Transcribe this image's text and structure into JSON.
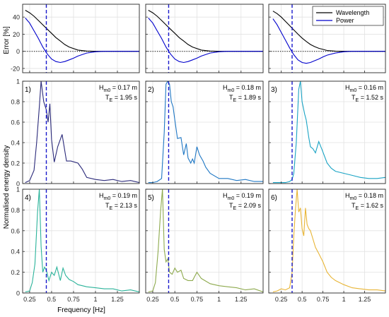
{
  "figure": {
    "ylabel_top": "Error [%]",
    "ylabel_bottom": "Normalised energy density",
    "xlabel": "Frequency [Hz]"
  },
  "chart_data": [
    {
      "type": "line",
      "panel": "error-col1",
      "xlim": [
        0.17,
        1.5
      ],
      "ylim": [
        -25,
        55
      ],
      "yticks": [
        -20,
        0,
        20,
        40
      ],
      "xticks": [
        0.25,
        0.5,
        0.75,
        1,
        1.25
      ],
      "xticklabels": [],
      "grid": true,
      "vline": 0.44,
      "series": [
        {
          "name": "Wavelength",
          "color": "#000000",
          "x": [
            0.2,
            0.25,
            0.3,
            0.35,
            0.4,
            0.45,
            0.5,
            0.55,
            0.6,
            0.65,
            0.7,
            0.8,
            0.9,
            1.0,
            1.1,
            1.25,
            1.5
          ],
          "y": [
            48,
            45,
            41,
            36,
            31,
            26,
            21,
            16,
            12,
            8,
            5,
            1.5,
            0.3,
            0,
            0,
            0,
            0
          ]
        },
        {
          "name": "Power",
          "color": "#0000cc",
          "x": [
            0.2,
            0.25,
            0.3,
            0.35,
            0.4,
            0.45,
            0.5,
            0.55,
            0.6,
            0.65,
            0.7,
            0.75,
            0.8,
            0.9,
            1.0,
            1.1,
            1.25,
            1.5
          ],
          "y": [
            39,
            33,
            24,
            15,
            5,
            -3,
            -9,
            -12,
            -13,
            -12,
            -10,
            -8,
            -5.5,
            -2,
            -0.5,
            0,
            0,
            0
          ]
        }
      ]
    },
    {
      "type": "line",
      "panel": "error-col2",
      "xlim": [
        0.17,
        1.5
      ],
      "ylim": [
        -25,
        55
      ],
      "yticks": [
        -20,
        0,
        20,
        40
      ],
      "xticks": [
        0.25,
        0.5,
        0.75,
        1,
        1.25
      ],
      "xticklabels": [],
      "grid": true,
      "vline": 0.43,
      "series": [
        {
          "name": "Wavelength",
          "color": "#000000",
          "x": [
            0.2,
            0.25,
            0.3,
            0.35,
            0.4,
            0.45,
            0.5,
            0.55,
            0.6,
            0.65,
            0.7,
            0.8,
            0.9,
            1.0,
            1.1,
            1.25,
            1.5
          ],
          "y": [
            48,
            45,
            41,
            36,
            31,
            26,
            21,
            16,
            12,
            8,
            5,
            1.5,
            0.3,
            0,
            0,
            0,
            0
          ]
        },
        {
          "name": "Power",
          "color": "#0000cc",
          "x": [
            0.2,
            0.25,
            0.3,
            0.35,
            0.4,
            0.45,
            0.5,
            0.55,
            0.6,
            0.65,
            0.7,
            0.75,
            0.8,
            0.9,
            1.0,
            1.1,
            1.25,
            1.5
          ],
          "y": [
            39,
            33,
            24,
            15,
            5,
            -3,
            -9,
            -12,
            -13,
            -12,
            -10,
            -8,
            -5.5,
            -2,
            -0.5,
            0,
            0,
            0
          ]
        }
      ]
    },
    {
      "type": "line",
      "panel": "error-col3",
      "xlim": [
        0.1,
        1.5
      ],
      "ylim": [
        -25,
        55
      ],
      "yticks": [
        -20,
        0,
        20,
        40
      ],
      "xticks": [
        0.25,
        0.5,
        0.75,
        1,
        1.25
      ],
      "xticklabels": [],
      "grid": true,
      "vline": 0.38,
      "legend": "top-right",
      "series": [
        {
          "name": "Wavelength",
          "color": "#000000",
          "x": [
            0.15,
            0.2,
            0.25,
            0.3,
            0.35,
            0.4,
            0.45,
            0.5,
            0.55,
            0.6,
            0.65,
            0.7,
            0.8,
            0.9,
            1.0,
            1.1,
            1.25,
            1.5
          ],
          "y": [
            47,
            44,
            40,
            35,
            30,
            25,
            20,
            15.5,
            11.5,
            8,
            5.5,
            3.5,
            1,
            0.2,
            0,
            0,
            0,
            0
          ]
        },
        {
          "name": "Power",
          "color": "#0000cc",
          "x": [
            0.15,
            0.2,
            0.25,
            0.3,
            0.35,
            0.4,
            0.45,
            0.5,
            0.55,
            0.6,
            0.65,
            0.7,
            0.75,
            0.8,
            0.9,
            1.0,
            1.1,
            1.25,
            1.5
          ],
          "y": [
            38,
            31,
            22,
            13,
            4,
            -4,
            -10,
            -13,
            -14,
            -13,
            -11,
            -9,
            -6.5,
            -4.5,
            -2,
            -0.5,
            0,
            0,
            0
          ]
        }
      ]
    },
    {
      "type": "line",
      "panel": "spectrum-1",
      "label": "1)",
      "hm0": "H",
      "hm0_sub": "m0",
      "hm0_val": " = 0.17 m",
      "te": "T",
      "te_sub": "E",
      "te_val": " = 1.95 s",
      "xlim": [
        0.17,
        1.5
      ],
      "ylim": [
        0,
        1
      ],
      "yticks": [
        0,
        0.2,
        0.4,
        0.6,
        0.8,
        1
      ],
      "yticklabels": [
        "0",
        "0.2",
        "0.4",
        "0.6",
        "0.8",
        "1"
      ],
      "xticks": [
        0.25,
        0.5,
        0.75,
        1,
        1.25
      ],
      "xticklabels": [],
      "grid": true,
      "vline": 0.44,
      "series": [
        {
          "color": "#2b2a7a",
          "x": [
            0.2,
            0.25,
            0.3,
            0.33,
            0.36,
            0.38,
            0.41,
            0.44,
            0.46,
            0.48,
            0.5,
            0.53,
            0.57,
            0.62,
            0.67,
            0.72,
            0.8,
            0.85,
            0.9,
            1.0,
            1.1,
            1.2,
            1.3,
            1.4,
            1.5
          ],
          "y": [
            0.01,
            0.03,
            0.13,
            0.4,
            0.75,
            1.0,
            0.8,
            0.72,
            0.6,
            0.78,
            0.43,
            0.21,
            0.36,
            0.48,
            0.22,
            0.22,
            0.2,
            0.14,
            0.06,
            0.04,
            0.03,
            0.04,
            0.02,
            0.03,
            0.01
          ]
        }
      ]
    },
    {
      "type": "line",
      "panel": "spectrum-2",
      "label": "2)",
      "hm0": "H",
      "hm0_sub": "m0",
      "hm0_val": " = 0.18 m",
      "te": "T",
      "te_sub": "E",
      "te_val": " = 1.89 s",
      "xlim": [
        0.17,
        1.5
      ],
      "ylim": [
        0,
        1
      ],
      "yticks": [
        0,
        0.2,
        0.4,
        0.6,
        0.8,
        1
      ],
      "xticks": [
        0.25,
        0.5,
        0.75,
        1,
        1.25
      ],
      "xticklabels": [],
      "grid": true,
      "vline": 0.43,
      "series": [
        {
          "color": "#1f77c4",
          "x": [
            0.2,
            0.25,
            0.3,
            0.35,
            0.38,
            0.4,
            0.42,
            0.44,
            0.46,
            0.48,
            0.5,
            0.53,
            0.57,
            0.6,
            0.63,
            0.65,
            0.68,
            0.7,
            0.72,
            0.75,
            0.78,
            0.82,
            0.85,
            0.9,
            1.0,
            1.1,
            1.2,
            1.3,
            1.4,
            1.5
          ],
          "y": [
            0.01,
            0.01,
            0.02,
            0.05,
            0.5,
            0.97,
            1.0,
            0.97,
            0.8,
            0.75,
            0.62,
            0.44,
            0.45,
            0.28,
            0.39,
            0.25,
            0.2,
            0.24,
            0.2,
            0.36,
            0.28,
            0.22,
            0.16,
            0.1,
            0.05,
            0.05,
            0.03,
            0.04,
            0.02,
            0.02
          ]
        }
      ]
    },
    {
      "type": "line",
      "panel": "spectrum-3",
      "label": "3)",
      "hm0": "H",
      "hm0_sub": "m0",
      "hm0_val": " = 0.16 m",
      "te": "T",
      "te_sub": "E",
      "te_val": " = 1.52 s",
      "xlim": [
        0.1,
        1.5
      ],
      "ylim": [
        0,
        1
      ],
      "yticks": [
        0,
        0.2,
        0.4,
        0.6,
        0.8,
        1
      ],
      "xticks": [
        0.25,
        0.5,
        0.75,
        1,
        1.25
      ],
      "xticklabels": [],
      "grid": true,
      "vline": 0.38,
      "series": [
        {
          "color": "#19a3c4",
          "x": [
            0.15,
            0.2,
            0.25,
            0.3,
            0.35,
            0.38,
            0.4,
            0.43,
            0.46,
            0.48,
            0.5,
            0.53,
            0.55,
            0.58,
            0.6,
            0.63,
            0.66,
            0.7,
            0.74,
            0.8,
            0.85,
            0.9,
            1.0,
            1.1,
            1.2,
            1.3,
            1.4,
            1.5
          ],
          "y": [
            0.01,
            0.01,
            0.01,
            0.01,
            0.02,
            0.04,
            0.1,
            0.4,
            0.92,
            1.0,
            0.8,
            0.68,
            0.62,
            0.45,
            0.36,
            0.34,
            0.3,
            0.41,
            0.33,
            0.2,
            0.15,
            0.12,
            0.1,
            0.08,
            0.06,
            0.05,
            0.05,
            0.06
          ]
        }
      ]
    },
    {
      "type": "line",
      "panel": "spectrum-4",
      "label": "4)",
      "hm0": "H",
      "hm0_sub": "m0",
      "hm0_val": " = 0.19 m",
      "te": "T",
      "te_sub": "E",
      "te_val": " = 2.13 s",
      "xlim": [
        0.17,
        1.5
      ],
      "ylim": [
        0,
        1
      ],
      "yticks": [
        0,
        0.2,
        0.4,
        0.6,
        0.8,
        1
      ],
      "yticklabels": [
        "0",
        "0.2",
        "0.4",
        "0.6",
        "0.8",
        "1"
      ],
      "xticks": [
        0.25,
        0.5,
        0.75,
        1,
        1.25
      ],
      "xticklabels": [
        "0.25",
        "0.5",
        "0.75",
        "1",
        "1.25"
      ],
      "grid": true,
      "vline": 0.44,
      "series": [
        {
          "color": "#2bb39a",
          "x": [
            0.2,
            0.25,
            0.28,
            0.31,
            0.34,
            0.36,
            0.38,
            0.4,
            0.42,
            0.44,
            0.47,
            0.5,
            0.53,
            0.56,
            0.6,
            0.63,
            0.66,
            0.7,
            0.75,
            0.8,
            0.9,
            1.0,
            1.1,
            1.2,
            1.3,
            1.4,
            1.5
          ],
          "y": [
            0.01,
            0.02,
            0.1,
            0.28,
            0.78,
            1.0,
            0.45,
            0.2,
            0.25,
            0.22,
            0.12,
            0.2,
            0.17,
            0.25,
            0.12,
            0.24,
            0.17,
            0.13,
            0.11,
            0.08,
            0.06,
            0.05,
            0.04,
            0.04,
            0.02,
            0.03,
            0.01
          ]
        }
      ]
    },
    {
      "type": "line",
      "panel": "spectrum-5",
      "label": "5)",
      "hm0": "H",
      "hm0_sub": "m0",
      "hm0_val": " = 0.19 m",
      "te": "T",
      "te_sub": "E",
      "te_val": " = 2.09 s",
      "xlim": [
        0.17,
        1.5
      ],
      "ylim": [
        0,
        1
      ],
      "yticks": [
        0,
        0.2,
        0.4,
        0.6,
        0.8,
        1
      ],
      "xticks": [
        0.25,
        0.5,
        0.75,
        1,
        1.25
      ],
      "xticklabels": [
        "0.25",
        "0.5",
        "0.75",
        "1",
        "1.25"
      ],
      "grid": true,
      "vline": 0.43,
      "series": [
        {
          "color": "#8eaa4e",
          "x": [
            0.2,
            0.25,
            0.28,
            0.31,
            0.34,
            0.36,
            0.38,
            0.4,
            0.42,
            0.44,
            0.47,
            0.5,
            0.53,
            0.57,
            0.6,
            0.65,
            0.7,
            0.75,
            0.8,
            0.9,
            1.0,
            1.1,
            1.2,
            1.3,
            1.4,
            1.5
          ],
          "y": [
            0.01,
            0.02,
            0.1,
            0.4,
            0.8,
            1.0,
            0.42,
            0.3,
            0.33,
            0.2,
            0.18,
            0.24,
            0.2,
            0.22,
            0.14,
            0.12,
            0.12,
            0.2,
            0.14,
            0.09,
            0.07,
            0.06,
            0.05,
            0.03,
            0.04,
            0.01
          ]
        }
      ]
    },
    {
      "type": "line",
      "panel": "spectrum-6",
      "label": "6)",
      "hm0": "H",
      "hm0_sub": "m0",
      "hm0_val": " = 0.18 m",
      "te": "T",
      "te_sub": "E",
      "te_val": " = 1.62 s",
      "xlim": [
        0.1,
        1.5
      ],
      "ylim": [
        0,
        1
      ],
      "yticks": [
        0,
        0.2,
        0.4,
        0.6,
        0.8,
        1
      ],
      "xticks": [
        0.25,
        0.5,
        0.75,
        1,
        1.25
      ],
      "xticklabels": [
        "0.25",
        "0.5",
        "0.75",
        "1",
        "1.25"
      ],
      "grid": true,
      "vline": 0.38,
      "series": [
        {
          "color": "#e8b536",
          "x": [
            0.15,
            0.2,
            0.25,
            0.3,
            0.35,
            0.38,
            0.4,
            0.42,
            0.44,
            0.46,
            0.48,
            0.5,
            0.52,
            0.54,
            0.56,
            0.58,
            0.6,
            0.63,
            0.66,
            0.7,
            0.75,
            0.8,
            0.85,
            0.9,
            1.0,
            1.1,
            1.2,
            1.3,
            1.4,
            1.5
          ],
          "y": [
            0.01,
            0.02,
            0.04,
            0.03,
            0.05,
            0.2,
            0.55,
            0.8,
            1.0,
            0.78,
            0.82,
            0.62,
            0.55,
            0.82,
            0.66,
            0.62,
            0.6,
            0.52,
            0.44,
            0.38,
            0.3,
            0.2,
            0.15,
            0.12,
            0.08,
            0.05,
            0.04,
            0.03,
            0.03,
            0.02
          ]
        }
      ]
    }
  ]
}
